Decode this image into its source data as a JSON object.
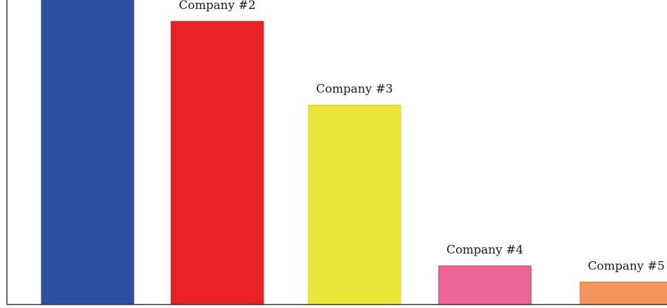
{
  "chart_data": {
    "type": "bar",
    "title": "",
    "xlabel": "",
    "ylabel": "",
    "categories": [
      "",
      "Company #2",
      "Company #3",
      "Company #4",
      "Company #5"
    ],
    "values": [
      100,
      88,
      62,
      12,
      7
    ],
    "colors": [
      "#2e4ea1",
      "#e82222",
      "#ece53c",
      "#ed6497",
      "#f2945c"
    ],
    "border_colors": [
      "#2e4ea1",
      "#c81a1a",
      "#d8cf30",
      "#c03a6f",
      "#d67040"
    ],
    "ylim": [
      0,
      100
    ],
    "grid": false,
    "legend": "none"
  }
}
